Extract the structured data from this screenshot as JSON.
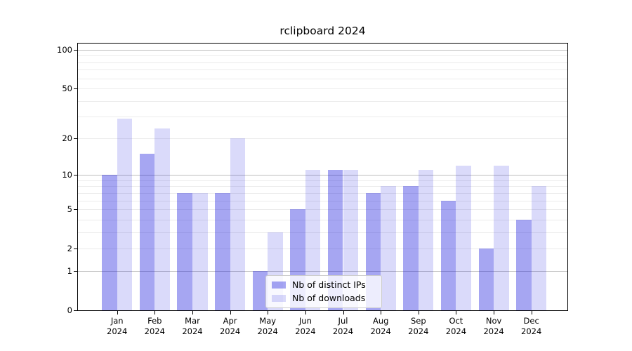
{
  "title": "rclipboard 2024",
  "legend": {
    "items": [
      {
        "label": "Nb of distinct IPs",
        "color": "rgba(8,8,220,0.36)"
      },
      {
        "label": "Nb of downloads",
        "color": "rgba(8,8,220,0.15)"
      }
    ]
  },
  "chart_data": {
    "type": "bar",
    "title": "rclipboard 2024",
    "xlabel": "",
    "ylabel": "",
    "scale": "log1p",
    "grid": true,
    "legend_position": "lower center",
    "year": "2024",
    "categories": [
      "Jan 2024",
      "Feb 2024",
      "Mar 2024",
      "Apr 2024",
      "May 2024",
      "Jun 2024",
      "Jul 2024",
      "Aug 2024",
      "Sep 2024",
      "Oct 2024",
      "Nov 2024",
      "Dec 2024"
    ],
    "series": [
      {
        "name": "Nb of distinct IPs",
        "values": [
          10,
          15,
          7,
          7,
          1,
          5,
          11,
          7,
          8,
          6,
          2,
          4
        ],
        "color": "rgba(8,8,220,0.36)"
      },
      {
        "name": "Nb of downloads",
        "values": [
          29,
          24,
          7,
          20,
          3,
          11,
          11,
          8,
          11,
          12,
          12,
          8
        ],
        "color": "rgba(8,8,220,0.15)"
      }
    ],
    "y_ticks": [
      0,
      1,
      2,
      5,
      10,
      20,
      50,
      100
    ],
    "y_major_grid": [
      1,
      10,
      100
    ],
    "y_minor_grid": [
      2,
      3,
      4,
      5,
      6,
      7,
      8,
      9,
      20,
      30,
      40,
      50,
      60,
      70,
      80,
      90
    ],
    "ylim": [
      0,
      112
    ],
    "colors": {
      "grid_major": "#bdbdbd",
      "grid_minor": "#ebebeb",
      "axis": "#000000",
      "legend_border": "#cccccc"
    }
  }
}
